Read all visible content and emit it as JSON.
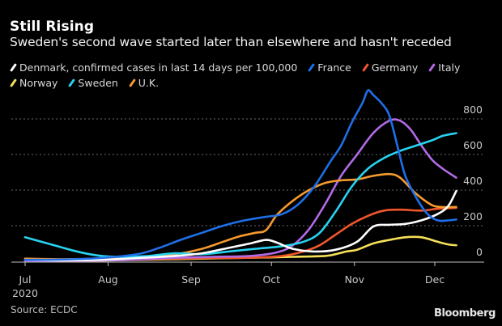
{
  "title": "Still Rising",
  "subtitle": "Sweden's second wave started later than elsewhere and hasn't receded",
  "source": "Source: ECDC",
  "brand": "Bloomberg",
  "legend": [
    {
      "label": "Denmark, confirmed cases in last 14 days per 100,000",
      "color": "#ffffff"
    },
    {
      "label": "France",
      "color": "#1f6fe8"
    },
    {
      "label": "Germany",
      "color": "#f0562b"
    },
    {
      "label": "Italy",
      "color": "#b36ae8"
    },
    {
      "label": "Norway",
      "color": "#f5e05a"
    },
    {
      "label": "Sweden",
      "color": "#28d2f0"
    },
    {
      "label": "U.K.",
      "color": "#f59a2e"
    }
  ],
  "chart_data": {
    "type": "line",
    "title": "Still Rising",
    "subtitle": "Sweden's second wave started later than elsewhere and hasn't receded",
    "xlabel": "",
    "ylabel": "Confirmed cases in last 14 days per 100,000",
    "x_unit": "days since 2020-07-01",
    "x_range": [
      0,
      161
    ],
    "ylim": [
      0,
      1000
    ],
    "y_ticks": [
      0,
      200,
      400,
      600,
      800
    ],
    "x_ticks": [
      {
        "day": 0,
        "label": "Jul",
        "sublabel": "2020"
      },
      {
        "day": 31,
        "label": "Aug",
        "sublabel": ""
      },
      {
        "day": 62,
        "label": "Sep",
        "sublabel": ""
      },
      {
        "day": 92,
        "label": "Oct",
        "sublabel": ""
      },
      {
        "day": 123,
        "label": "Nov",
        "sublabel": ""
      },
      {
        "day": 153,
        "label": "Dec",
        "sublabel": ""
      }
    ],
    "grid": "horizontal-dotted",
    "legend_position": "top",
    "series": [
      {
        "name": "Denmark",
        "color": "#ffffff",
        "x": [
          0,
          14,
          28,
          42,
          56,
          66,
          76,
          84,
          90,
          94,
          100,
          108,
          116,
          124,
          130,
          136,
          142,
          148,
          154,
          158,
          161
        ],
        "y": [
          8,
          5,
          8,
          18,
          30,
          45,
          75,
          100,
          120,
          105,
          70,
          55,
          65,
          110,
          195,
          205,
          210,
          230,
          265,
          310,
          395
        ]
      },
      {
        "name": "France",
        "color": "#1f6fe8",
        "x": [
          0,
          14,
          28,
          42,
          50,
          58,
          66,
          74,
          82,
          90,
          96,
          102,
          108,
          114,
          118,
          122,
          126,
          128,
          130,
          133,
          136,
          139,
          142,
          146,
          150,
          154,
          158,
          161
        ],
        "y": [
          8,
          10,
          18,
          40,
          75,
          120,
          160,
          200,
          230,
          250,
          265,
          320,
          420,
          560,
          650,
          780,
          890,
          960,
          935,
          890,
          820,
          650,
          480,
          360,
          270,
          230,
          230,
          235
        ]
      },
      {
        "name": "Germany",
        "color": "#f0562b",
        "x": [
          0,
          14,
          28,
          42,
          56,
          70,
          84,
          96,
          104,
          110,
          116,
          122,
          128,
          134,
          140,
          148,
          154,
          161
        ],
        "y": [
          5,
          5,
          6,
          10,
          15,
          18,
          20,
          30,
          55,
          90,
          150,
          210,
          255,
          285,
          290,
          285,
          295,
          300
        ]
      },
      {
        "name": "Italy",
        "color": "#b36ae8",
        "x": [
          0,
          14,
          28,
          42,
          56,
          70,
          84,
          94,
          100,
          106,
          112,
          118,
          124,
          130,
          136,
          140,
          144,
          148,
          152,
          156,
          161
        ],
        "y": [
          3,
          3,
          5,
          10,
          20,
          25,
          30,
          50,
          90,
          180,
          320,
          480,
          600,
          720,
          790,
          790,
          740,
          650,
          570,
          520,
          470
        ]
      },
      {
        "name": "Norway",
        "color": "#f5e05a",
        "x": [
          0,
          14,
          28,
          42,
          56,
          70,
          84,
          100,
          112,
          116,
          120,
          124,
          130,
          136,
          142,
          148,
          154,
          158,
          161
        ],
        "y": [
          6,
          3,
          4,
          8,
          12,
          16,
          20,
          25,
          30,
          40,
          55,
          65,
          100,
          120,
          135,
          135,
          110,
          95,
          90
        ]
      },
      {
        "name": "Sweden",
        "color": "#28d2f0",
        "x": [
          0,
          6,
          12,
          18,
          24,
          30,
          38,
          46,
          56,
          66,
          76,
          86,
          96,
          104,
          110,
          116,
          122,
          128,
          134,
          140,
          146,
          152,
          156,
          161
        ],
        "y": [
          135,
          110,
          85,
          60,
          40,
          28,
          25,
          30,
          45,
          40,
          55,
          70,
          85,
          110,
          160,
          280,
          420,
          520,
          580,
          620,
          650,
          680,
          705,
          720
        ]
      },
      {
        "name": "U.K.",
        "color": "#f59a2e",
        "x": [
          0,
          14,
          28,
          42,
          56,
          66,
          74,
          80,
          86,
          90,
          94,
          100,
          106,
          112,
          118,
          124,
          130,
          136,
          140,
          146,
          152,
          156,
          161
        ],
        "y": [
          15,
          12,
          15,
          25,
          40,
          70,
          110,
          140,
          160,
          175,
          260,
          340,
          400,
          440,
          455,
          460,
          480,
          490,
          470,
          380,
          315,
          305,
          305
        ]
      }
    ]
  }
}
